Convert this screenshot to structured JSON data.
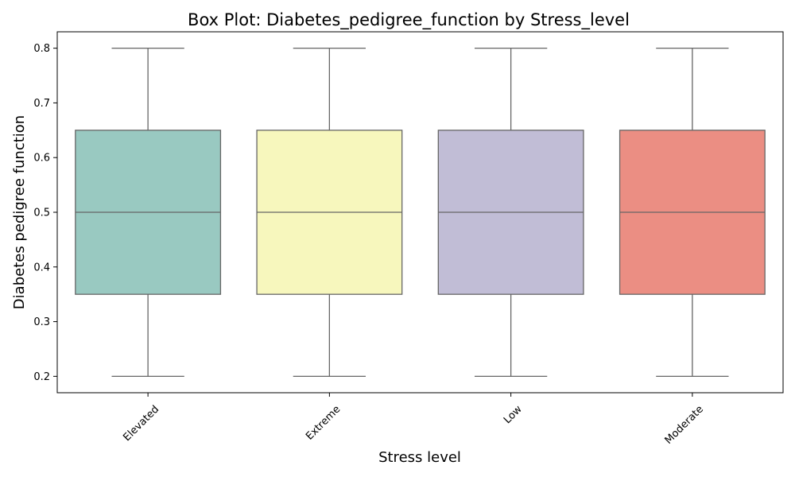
{
  "chart_data": {
    "type": "box",
    "title": "Box Plot: Diabetes_pedigree_function by Stress_level",
    "xlabel": "Stress level",
    "ylabel": "Diabetes pedigree function",
    "ylim": [
      0.17,
      0.83
    ],
    "yticks": [
      "0.2",
      "0.3",
      "0.4",
      "0.5",
      "0.6",
      "0.7",
      "0.8"
    ],
    "categories": [
      "Elevated",
      "Extreme",
      "Low",
      "Moderate"
    ],
    "boxes": [
      {
        "category": "Elevated",
        "whisker_low": 0.2,
        "q1": 0.35,
        "median": 0.5,
        "q3": 0.65,
        "whisker_high": 0.8,
        "color": "#99c9c1"
      },
      {
        "category": "Extreme",
        "whisker_low": 0.2,
        "q1": 0.35,
        "median": 0.5,
        "q3": 0.65,
        "whisker_high": 0.8,
        "color": "#f7f7bd"
      },
      {
        "category": "Low",
        "whisker_low": 0.2,
        "q1": 0.35,
        "median": 0.5,
        "q3": 0.65,
        "whisker_high": 0.8,
        "color": "#c1bdd6"
      },
      {
        "category": "Moderate",
        "whisker_low": 0.2,
        "q1": 0.35,
        "median": 0.5,
        "q3": 0.65,
        "whisker_high": 0.8,
        "color": "#eb8e83"
      }
    ],
    "line_color": "#666666",
    "grid": false,
    "legend": "none"
  }
}
